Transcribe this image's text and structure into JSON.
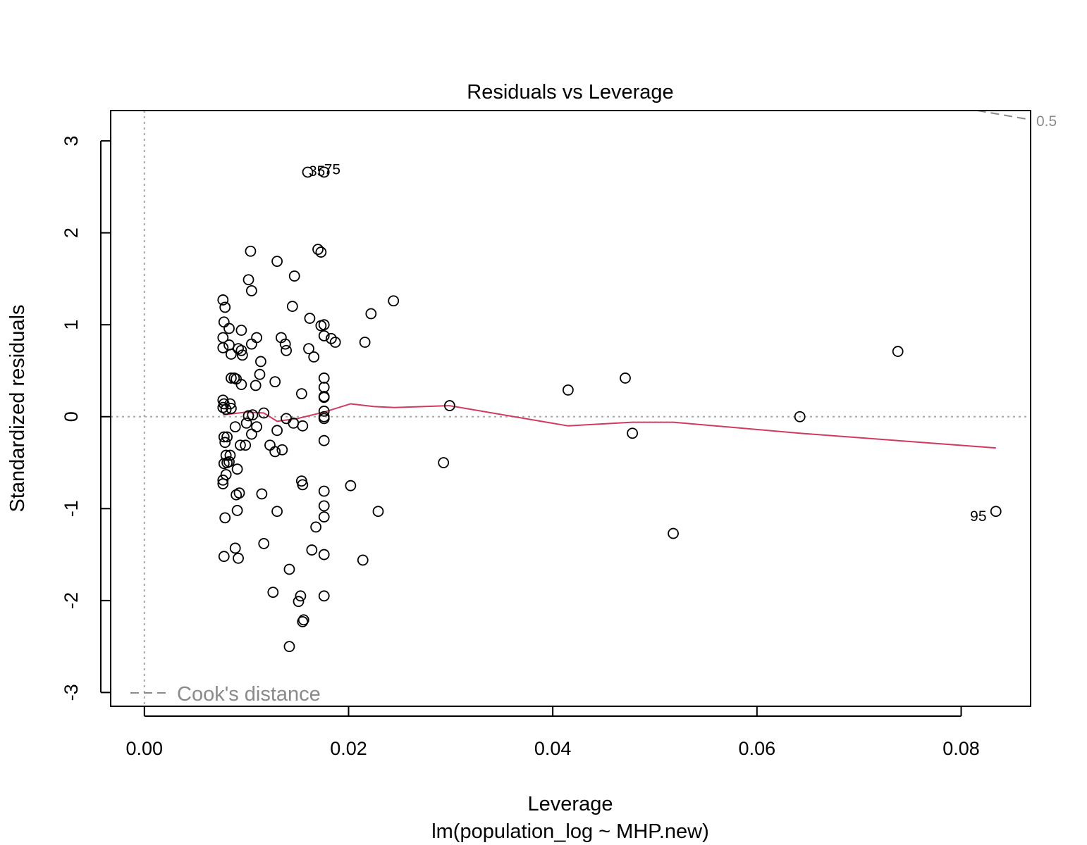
{
  "chart_data": {
    "type": "scatter",
    "title": "Residuals vs Leverage",
    "xlabel": "Leverage",
    "sublabel": "lm(population_log ~ MHP.new)",
    "ylabel": "Standardized residuals",
    "xlim": [
      -0.0033,
      0.0868
    ],
    "ylim": [
      -3.15,
      3.33
    ],
    "xticks": [
      0.0,
      0.02,
      0.04,
      0.06,
      0.08
    ],
    "xtick_labels": [
      "0.00",
      "0.02",
      "0.04",
      "0.06",
      "0.08"
    ],
    "yticks": [
      -3,
      -2,
      -1,
      0,
      1,
      2,
      3
    ],
    "ytick_labels": [
      "-3",
      "-2",
      "-1",
      "0",
      "1",
      "2",
      "3"
    ],
    "legend": {
      "label": "Cook's distance",
      "placement": "bottom-left"
    },
    "cooks_contour": {
      "label": "0.5",
      "points": [
        [
          0.0816,
          3.33
        ],
        [
          0.0868,
          3.23
        ]
      ]
    },
    "reference_lines": {
      "h": 0,
      "v": 0
    },
    "grid": false,
    "colors": {
      "points": "#000000",
      "smooth": "#d03a5e",
      "reference": "#a8a8a8",
      "cooks": "#8a8a8a"
    },
    "annotations": [
      {
        "text": "35",
        "x": 0.0161,
        "y": 2.67
      },
      {
        "text": "75",
        "x": 0.0176,
        "y": 2.69
      },
      {
        "text": "95",
        "x": 0.0829,
        "y": -1.08
      }
    ],
    "points": [
      [
        0.016,
        2.66
      ],
      [
        0.0176,
        2.66
      ],
      [
        0.0104,
        1.8
      ],
      [
        0.017,
        1.82
      ],
      [
        0.0173,
        1.79
      ],
      [
        0.013,
        1.69
      ],
      [
        0.0147,
        1.53
      ],
      [
        0.0102,
        1.49
      ],
      [
        0.0105,
        1.37
      ],
      [
        0.0077,
        1.27
      ],
      [
        0.0079,
        1.19
      ],
      [
        0.0145,
        1.2
      ],
      [
        0.0244,
        1.26
      ],
      [
        0.0222,
        1.12
      ],
      [
        0.0162,
        1.07
      ],
      [
        0.0078,
        1.03
      ],
      [
        0.0083,
        0.96
      ],
      [
        0.0095,
        0.94
      ],
      [
        0.0173,
        0.99
      ],
      [
        0.0176,
        1.0
      ],
      [
        0.0077,
        0.86
      ],
      [
        0.011,
        0.86
      ],
      [
        0.0134,
        0.86
      ],
      [
        0.0176,
        0.88
      ],
      [
        0.0183,
        0.85
      ],
      [
        0.0187,
        0.81
      ],
      [
        0.0216,
        0.81
      ],
      [
        0.0077,
        0.75
      ],
      [
        0.0083,
        0.78
      ],
      [
        0.0092,
        0.74
      ],
      [
        0.0095,
        0.72
      ],
      [
        0.0105,
        0.79
      ],
      [
        0.0138,
        0.79
      ],
      [
        0.0139,
        0.72
      ],
      [
        0.0161,
        0.74
      ],
      [
        0.0085,
        0.68
      ],
      [
        0.0096,
        0.67
      ],
      [
        0.0166,
        0.65
      ],
      [
        0.0114,
        0.6
      ],
      [
        0.0085,
        0.42
      ],
      [
        0.0088,
        0.42
      ],
      [
        0.009,
        0.41
      ],
      [
        0.0095,
        0.35
      ],
      [
        0.0109,
        0.34
      ],
      [
        0.0113,
        0.46
      ],
      [
        0.0128,
        0.38
      ],
      [
        0.0176,
        0.42
      ],
      [
        0.0154,
        0.25
      ],
      [
        0.0176,
        0.32
      ],
      [
        0.0176,
        0.22
      ],
      [
        0.0176,
        0.21
      ],
      [
        0.0077,
        0.18
      ],
      [
        0.0078,
        0.14
      ],
      [
        0.0077,
        0.1
      ],
      [
        0.008,
        0.08
      ],
      [
        0.0084,
        0.14
      ],
      [
        0.0085,
        0.09
      ],
      [
        0.0102,
        0.01
      ],
      [
        0.0106,
        0.02
      ],
      [
        0.0117,
        0.04
      ],
      [
        0.0139,
        -0.02
      ],
      [
        0.0176,
        0.06
      ],
      [
        0.0176,
        0.0
      ],
      [
        0.0176,
        -0.02
      ],
      [
        0.0299,
        0.12
      ],
      [
        0.0415,
        0.29
      ],
      [
        0.0471,
        0.42
      ],
      [
        0.0738,
        0.71
      ],
      [
        0.0642,
        0.0
      ],
      [
        0.0089,
        -0.11
      ],
      [
        0.01,
        -0.07
      ],
      [
        0.011,
        -0.11
      ],
      [
        0.0105,
        -0.19
      ],
      [
        0.013,
        -0.15
      ],
      [
        0.0146,
        -0.07
      ],
      [
        0.0155,
        -0.1
      ],
      [
        0.0078,
        -0.22
      ],
      [
        0.0081,
        -0.22
      ],
      [
        0.0079,
        -0.28
      ],
      [
        0.0094,
        -0.31
      ],
      [
        0.0099,
        -0.31
      ],
      [
        0.0123,
        -0.31
      ],
      [
        0.0128,
        -0.38
      ],
      [
        0.0135,
        -0.36
      ],
      [
        0.0176,
        -0.26
      ],
      [
        0.0478,
        -0.18
      ],
      [
        0.008,
        -0.42
      ],
      [
        0.0084,
        -0.42
      ],
      [
        0.0078,
        -0.51
      ],
      [
        0.0081,
        -0.5
      ],
      [
        0.0083,
        -0.49
      ],
      [
        0.0091,
        -0.57
      ],
      [
        0.008,
        -0.63
      ],
      [
        0.0077,
        -0.69
      ],
      [
        0.0077,
        -0.73
      ],
      [
        0.0293,
        -0.5
      ],
      [
        0.0154,
        -0.7
      ],
      [
        0.0155,
        -0.74
      ],
      [
        0.0176,
        -0.81
      ],
      [
        0.0202,
        -0.75
      ],
      [
        0.009,
        -0.85
      ],
      [
        0.0093,
        -0.83
      ],
      [
        0.0115,
        -0.84
      ],
      [
        0.0091,
        -1.02
      ],
      [
        0.013,
        -1.03
      ],
      [
        0.0176,
        -0.97
      ],
      [
        0.0229,
        -1.03
      ],
      [
        0.0079,
        -1.1
      ],
      [
        0.0176,
        -1.09
      ],
      [
        0.0168,
        -1.2
      ],
      [
        0.0518,
        -1.27
      ],
      [
        0.0834,
        -1.03
      ],
      [
        0.0117,
        -1.38
      ],
      [
        0.0089,
        -1.43
      ],
      [
        0.0164,
        -1.45
      ],
      [
        0.0078,
        -1.52
      ],
      [
        0.0092,
        -1.54
      ],
      [
        0.0176,
        -1.5
      ],
      [
        0.0214,
        -1.56
      ],
      [
        0.0142,
        -1.66
      ],
      [
        0.0126,
        -1.91
      ],
      [
        0.0153,
        -1.95
      ],
      [
        0.0176,
        -1.95
      ],
      [
        0.0151,
        -2.01
      ],
      [
        0.0156,
        -2.21
      ],
      [
        0.0155,
        -2.23
      ],
      [
        0.0142,
        -2.5
      ]
    ],
    "smooth": [
      [
        0.0077,
        0.02
      ],
      [
        0.01,
        0.05
      ],
      [
        0.0117,
        0.04
      ],
      [
        0.013,
        -0.05
      ],
      [
        0.015,
        -0.02
      ],
      [
        0.0176,
        0.05
      ],
      [
        0.0202,
        0.14
      ],
      [
        0.0225,
        0.11
      ],
      [
        0.0245,
        0.1
      ],
      [
        0.0299,
        0.12
      ],
      [
        0.0415,
        -0.1
      ],
      [
        0.0478,
        -0.06
      ],
      [
        0.0518,
        -0.06
      ],
      [
        0.0642,
        -0.18
      ],
      [
        0.0738,
        -0.26
      ],
      [
        0.0834,
        -0.34
      ]
    ]
  }
}
